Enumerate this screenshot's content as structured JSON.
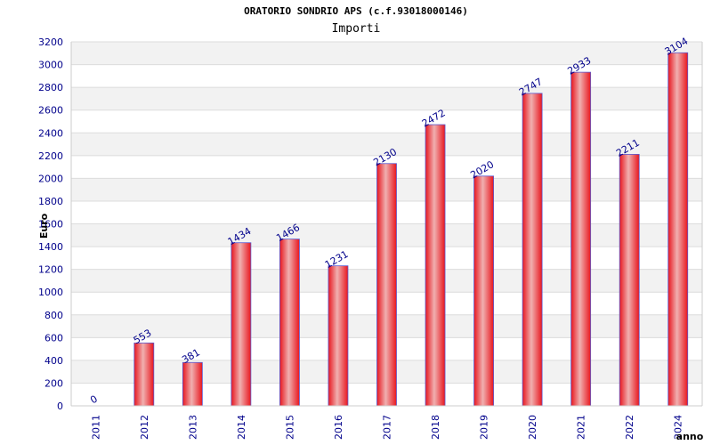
{
  "chart_data": {
    "type": "bar",
    "title": "ORATORIO SONDRIO APS (c.f.93018000146)",
    "subtitle": "Importi",
    "xlabel": "anno",
    "ylabel": "Euro",
    "categories": [
      "2011",
      "2012",
      "2013",
      "2014",
      "2015",
      "2016",
      "2017",
      "2018",
      "2019",
      "2020",
      "2021",
      "2022",
      "2024"
    ],
    "values": [
      0,
      553,
      381,
      1434,
      1466,
      1231,
      2130,
      2472,
      2020,
      2747,
      2933,
      2211,
      3104
    ],
    "ylim": [
      0,
      3200
    ],
    "yticks": [
      0,
      200,
      400,
      600,
      800,
      1000,
      1200,
      1400,
      1600,
      1800,
      2000,
      2200,
      2400,
      2600,
      2800,
      3000,
      3200
    ],
    "grid": true,
    "bar_color": "#e8161e",
    "bar_highlight": "#f0b0b0",
    "bar_edge": "#5a5ad0",
    "label_color": "#00008b",
    "band_color": "#f2f2f2"
  }
}
